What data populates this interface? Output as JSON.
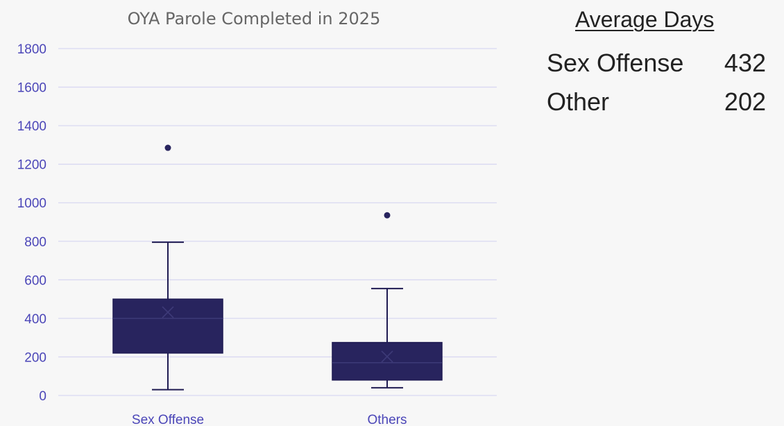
{
  "chart_data": {
    "type": "box",
    "title": "OYA Parole Completed in 2025",
    "xlabel": "",
    "ylabel": "",
    "ylim": [
      0,
      1800
    ],
    "yticks": [
      0,
      200,
      400,
      600,
      800,
      1000,
      1200,
      1400,
      1600,
      1800
    ],
    "categories": [
      "Sex Offense",
      "Others"
    ],
    "grid": true,
    "series": [
      {
        "category": "Sex Offense",
        "whisker_low": 30,
        "q1": 220,
        "median": 400,
        "q3": 500,
        "whisker_high": 795,
        "mean": 432,
        "outliers": [
          1285
        ]
      },
      {
        "category": "Others",
        "whisker_low": 40,
        "q1": 80,
        "median": 170,
        "q3": 275,
        "whisker_high": 555,
        "mean": 202,
        "outliers": [
          935
        ]
      }
    ],
    "colors": {
      "box_fill": "#28245e",
      "box_stroke": "#1f1b52",
      "grid": "#d9d8f2",
      "tick_text": "#4b46b8",
      "title_text": "#666666"
    }
  },
  "average_days": {
    "title": "Average Days",
    "rows": [
      {
        "label": "Sex Offense",
        "value": "432"
      },
      {
        "label": "Other",
        "value": "202"
      }
    ]
  }
}
